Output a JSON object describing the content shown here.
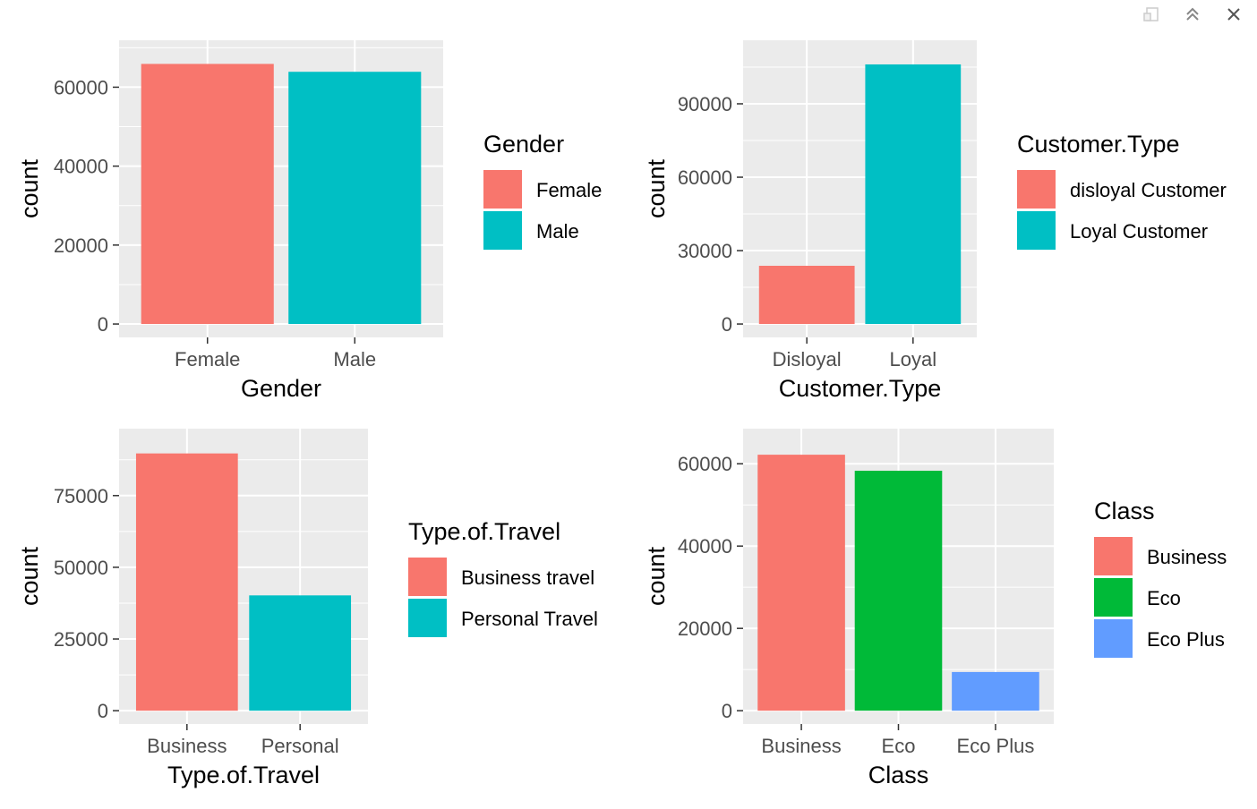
{
  "window": {
    "toolbar": [
      {
        "name": "export-icon",
        "color": "#cccccc"
      },
      {
        "name": "maximize-icon",
        "color": "#888888"
      },
      {
        "name": "close-icon",
        "color": "#555555"
      }
    ]
  },
  "chart_data": [
    {
      "type": "bar",
      "categories": [
        "Female",
        "Male"
      ],
      "values": [
        65900,
        63900
      ],
      "colors": [
        "#F8766D",
        "#00BFC4"
      ],
      "xlabel": "Gender",
      "ylabel": "count",
      "ylim": [
        0,
        68500
      ],
      "yticks": [
        0,
        20000,
        40000,
        60000
      ],
      "ytick_labels": [
        "0",
        "20000",
        "40000",
        "60000"
      ],
      "grid": true,
      "legend": {
        "title": "Gender",
        "position": "right",
        "entries": [
          "Female",
          "Male"
        ]
      }
    },
    {
      "type": "bar",
      "categories": [
        "Disloyal",
        "Loyal"
      ],
      "values": [
        23800,
        106100
      ],
      "colors": [
        "#F8766D",
        "#00BFC4"
      ],
      "xlabel": "Customer.Type",
      "ylabel": "count",
      "ylim": [
        0,
        110500
      ],
      "yticks": [
        0,
        30000,
        60000,
        90000
      ],
      "ytick_labels": [
        "0",
        "30000",
        "60000",
        "90000"
      ],
      "grid": true,
      "legend": {
        "title": "Customer.Type",
        "position": "right",
        "entries": [
          "disloyal Customer",
          "Loyal Customer"
        ]
      }
    },
    {
      "type": "bar",
      "categories": [
        "Business",
        "Personal"
      ],
      "values": [
        89700,
        40200
      ],
      "colors": [
        "#F8766D",
        "#00BFC4"
      ],
      "xlabel": "Type.of.Travel",
      "ylabel": "count",
      "ylim": [
        0,
        93700
      ],
      "yticks": [
        0,
        25000,
        50000,
        75000
      ],
      "ytick_labels": [
        "0",
        "25000",
        "50000",
        "75000"
      ],
      "grid": true,
      "legend": {
        "title": "Type.of.Travel",
        "position": "right",
        "entries": [
          "Business travel",
          "Personal Travel"
        ]
      }
    },
    {
      "type": "bar",
      "categories": [
        "Business",
        "Eco",
        "Eco Plus"
      ],
      "values": [
        62200,
        58300,
        9400
      ],
      "colors": [
        "#F8766D",
        "#00BA38",
        "#619CFF"
      ],
      "xlabel": "Class",
      "ylabel": "count",
      "ylim": [
        0,
        65300
      ],
      "yticks": [
        0,
        20000,
        40000,
        60000
      ],
      "ytick_labels": [
        "0",
        "20000",
        "40000",
        "60000"
      ],
      "grid": true,
      "legend": {
        "title": "Class",
        "position": "right",
        "entries": [
          "Business",
          "Eco",
          "Eco Plus"
        ]
      }
    }
  ]
}
